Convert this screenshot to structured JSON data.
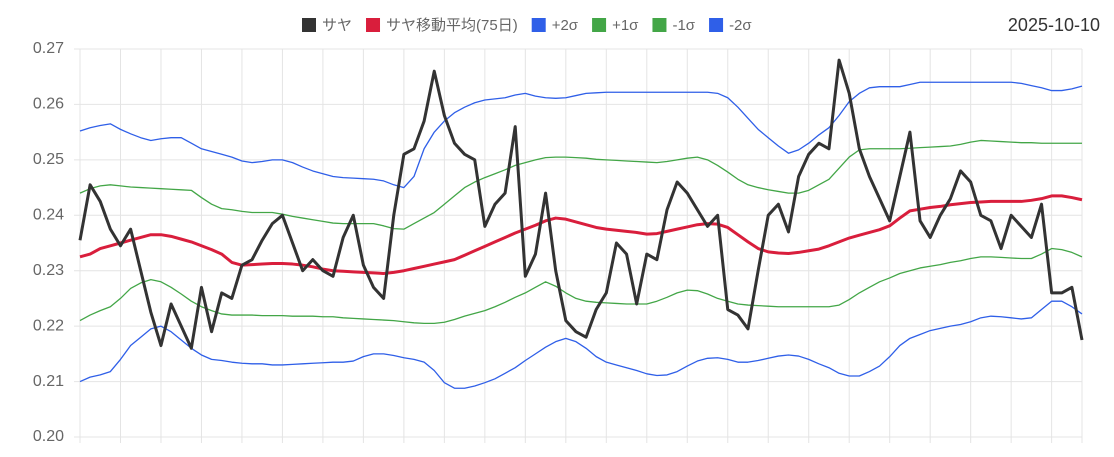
{
  "chart_data": {
    "type": "line",
    "date": "2025-10-10",
    "ylim": [
      0.2,
      0.27
    ],
    "yticks": [
      {
        "value": 0.2,
        "label": "0.20"
      },
      {
        "value": 0.21,
        "label": "0.21"
      },
      {
        "value": 0.22,
        "label": "0.22"
      },
      {
        "value": 0.23,
        "label": "0.23"
      },
      {
        "value": 0.24,
        "label": "0.24"
      },
      {
        "value": 0.25,
        "label": "0.25"
      },
      {
        "value": 0.26,
        "label": "0.26"
      },
      {
        "value": 0.27,
        "label": "0.27"
      }
    ],
    "grid": true,
    "series": [
      {
        "name": "サヤ",
        "color": "#333333",
        "values": [
          0.2355,
          0.2455,
          0.2425,
          0.2375,
          0.2345,
          0.2375,
          0.23,
          0.2225,
          0.2165,
          0.224,
          0.22,
          0.216,
          0.227,
          0.219,
          0.226,
          0.225,
          0.231,
          0.232,
          0.2355,
          0.2385,
          0.24,
          0.235,
          0.23,
          0.232,
          0.23,
          0.229,
          0.236,
          0.24,
          0.231,
          0.227,
          0.225,
          0.24,
          0.251,
          0.252,
          0.257,
          0.266,
          0.258,
          0.253,
          0.251,
          0.25,
          0.238,
          0.242,
          0.244,
          0.256,
          0.229,
          0.233,
          0.244,
          0.23,
          0.221,
          0.219,
          0.218,
          0.223,
          0.226,
          0.235,
          0.233,
          0.224,
          0.233,
          0.232,
          0.241,
          0.246,
          0.244,
          0.241,
          0.238,
          0.24,
          0.223,
          0.222,
          0.2195,
          0.23,
          0.24,
          0.242,
          0.237,
          0.247,
          0.251,
          0.253,
          0.252,
          0.268,
          0.262,
          0.252,
          0.247,
          0.243,
          0.239,
          0.247,
          0.255,
          0.239,
          0.236,
          0.24,
          0.243,
          0.248,
          0.246,
          0.24,
          0.239,
          0.234,
          0.24,
          0.238,
          0.236,
          0.242,
          0.226,
          0.226,
          0.227,
          0.2175
        ]
      },
      {
        "name": "サヤ移動平均(75日)",
        "color": "#d91e3c",
        "values": [
          0.2325,
          0.233,
          0.234,
          0.2345,
          0.235,
          0.2355,
          0.236,
          0.2365,
          0.2365,
          0.2362,
          0.2357,
          0.2352,
          0.2345,
          0.2338,
          0.233,
          0.2315,
          0.231,
          0.2311,
          0.2312,
          0.2313,
          0.2313,
          0.2312,
          0.231,
          0.2307,
          0.2303,
          0.23,
          0.2299,
          0.2298,
          0.2297,
          0.2296,
          0.2295,
          0.2297,
          0.23,
          0.2304,
          0.2308,
          0.2312,
          0.2316,
          0.232,
          0.2328,
          0.2336,
          0.2344,
          0.2352,
          0.236,
          0.2368,
          0.2375,
          0.2382,
          0.239,
          0.2395,
          0.2393,
          0.2388,
          0.2383,
          0.2378,
          0.2375,
          0.2373,
          0.2371,
          0.2369,
          0.2366,
          0.2367,
          0.2371,
          0.2375,
          0.2379,
          0.2383,
          0.2385,
          0.2384,
          0.2378,
          0.2365,
          0.2352,
          0.234,
          0.2334,
          0.2332,
          0.2331,
          0.2333,
          0.2336,
          0.2339,
          0.2345,
          0.2352,
          0.2359,
          0.2364,
          0.2369,
          0.2374,
          0.2381,
          0.2395,
          0.2408,
          0.2411,
          0.2414,
          0.2416,
          0.2419,
          0.2421,
          0.2423,
          0.2424,
          0.2425,
          0.2425,
          0.2425,
          0.2425,
          0.2427,
          0.243,
          0.2435,
          0.2435,
          0.2432,
          0.2428
        ]
      },
      {
        "name": "+2σ",
        "color": "#2f5fe8",
        "values": [
          0.2552,
          0.2558,
          0.2562,
          0.2565,
          0.2555,
          0.2547,
          0.254,
          0.2535,
          0.2538,
          0.254,
          0.254,
          0.253,
          0.252,
          0.2515,
          0.251,
          0.2505,
          0.2498,
          0.2495,
          0.2497,
          0.25,
          0.25,
          0.2495,
          0.2487,
          0.248,
          0.2475,
          0.247,
          0.2468,
          0.2467,
          0.2466,
          0.2465,
          0.2462,
          0.2455,
          0.245,
          0.247,
          0.252,
          0.255,
          0.257,
          0.2585,
          0.2595,
          0.2603,
          0.2608,
          0.261,
          0.2612,
          0.2617,
          0.262,
          0.2615,
          0.2612,
          0.2611,
          0.2612,
          0.2616,
          0.262,
          0.2621,
          0.2622,
          0.2622,
          0.2622,
          0.2622,
          0.2622,
          0.2622,
          0.2622,
          0.2622,
          0.2622,
          0.2622,
          0.2622,
          0.262,
          0.2612,
          0.2595,
          0.2575,
          0.2555,
          0.254,
          0.2525,
          0.2512,
          0.2518,
          0.253,
          0.2545,
          0.2558,
          0.258,
          0.2605,
          0.262,
          0.263,
          0.2632,
          0.2632,
          0.2632,
          0.2636,
          0.264,
          0.264,
          0.264,
          0.264,
          0.264,
          0.264,
          0.264,
          0.264,
          0.264,
          0.264,
          0.2638,
          0.2634,
          0.263,
          0.2625,
          0.2625,
          0.2628,
          0.2633
        ]
      },
      {
        "name": "+1σ",
        "color": "#43a647",
        "values": [
          0.244,
          0.2448,
          0.2453,
          0.2455,
          0.2453,
          0.2451,
          0.245,
          0.2449,
          0.2448,
          0.2447,
          0.2446,
          0.2445,
          0.2432,
          0.242,
          0.2412,
          0.241,
          0.2407,
          0.2405,
          0.2405,
          0.2405,
          0.2402,
          0.2398,
          0.2395,
          0.2392,
          0.2389,
          0.2386,
          0.2385,
          0.2385,
          0.2385,
          0.2385,
          0.2381,
          0.2376,
          0.2375,
          0.2385,
          0.2395,
          0.2405,
          0.242,
          0.2435,
          0.245,
          0.246,
          0.2468,
          0.2475,
          0.2482,
          0.249,
          0.2495,
          0.25,
          0.2504,
          0.2505,
          0.2505,
          0.2504,
          0.2503,
          0.2501,
          0.25,
          0.2499,
          0.2498,
          0.2497,
          0.2496,
          0.2495,
          0.2497,
          0.25,
          0.2503,
          0.2505,
          0.25,
          0.249,
          0.2478,
          0.2465,
          0.2455,
          0.245,
          0.2446,
          0.2443,
          0.244,
          0.244,
          0.2445,
          0.2455,
          0.2465,
          0.2485,
          0.2505,
          0.2518,
          0.252,
          0.252,
          0.252,
          0.252,
          0.2521,
          0.2522,
          0.2523,
          0.2524,
          0.2525,
          0.2528,
          0.2532,
          0.2535,
          0.2534,
          0.2533,
          0.2532,
          0.2531,
          0.2531,
          0.253,
          0.253,
          0.253,
          0.253,
          0.253
        ]
      },
      {
        "name": "-1σ",
        "color": "#43a647",
        "values": [
          0.221,
          0.222,
          0.2228,
          0.2235,
          0.225,
          0.2268,
          0.2278,
          0.2284,
          0.228,
          0.227,
          0.2258,
          0.2245,
          0.2235,
          0.2228,
          0.2222,
          0.222,
          0.222,
          0.222,
          0.2219,
          0.2219,
          0.2219,
          0.2218,
          0.2218,
          0.2218,
          0.2217,
          0.2217,
          0.2215,
          0.2214,
          0.2213,
          0.2212,
          0.2211,
          0.221,
          0.2208,
          0.2206,
          0.2205,
          0.2205,
          0.2207,
          0.2212,
          0.2218,
          0.2223,
          0.2228,
          0.2235,
          0.2243,
          0.2252,
          0.226,
          0.227,
          0.228,
          0.2272,
          0.226,
          0.225,
          0.2245,
          0.2243,
          0.2242,
          0.2241,
          0.224,
          0.224,
          0.224,
          0.2245,
          0.2252,
          0.226,
          0.2265,
          0.2264,
          0.2258,
          0.225,
          0.2245,
          0.224,
          0.2238,
          0.2237,
          0.2236,
          0.2235,
          0.2235,
          0.2235,
          0.2235,
          0.2235,
          0.2235,
          0.2238,
          0.2248,
          0.226,
          0.227,
          0.228,
          0.2287,
          0.2295,
          0.23,
          0.2305,
          0.2308,
          0.2311,
          0.2315,
          0.2318,
          0.2322,
          0.2325,
          0.2325,
          0.2324,
          0.2323,
          0.2322,
          0.2322,
          0.233,
          0.234,
          0.2338,
          0.2333,
          0.2325
        ]
      },
      {
        "name": "-2σ",
        "color": "#2f5fe8",
        "values": [
          0.21,
          0.2108,
          0.2112,
          0.2118,
          0.214,
          0.2165,
          0.218,
          0.2195,
          0.22,
          0.219,
          0.2175,
          0.216,
          0.2148,
          0.214,
          0.2138,
          0.2135,
          0.2133,
          0.2132,
          0.2132,
          0.213,
          0.213,
          0.2131,
          0.2132,
          0.2133,
          0.2134,
          0.2135,
          0.2135,
          0.2137,
          0.2145,
          0.215,
          0.215,
          0.2147,
          0.2143,
          0.214,
          0.2135,
          0.212,
          0.2098,
          0.2088,
          0.2088,
          0.2092,
          0.2098,
          0.2105,
          0.2115,
          0.2125,
          0.2138,
          0.215,
          0.2162,
          0.2172,
          0.2178,
          0.2172,
          0.216,
          0.2145,
          0.2135,
          0.213,
          0.2125,
          0.212,
          0.2114,
          0.2111,
          0.2112,
          0.2118,
          0.2128,
          0.2137,
          0.2142,
          0.2143,
          0.214,
          0.2135,
          0.2135,
          0.2138,
          0.2142,
          0.2146,
          0.2148,
          0.2146,
          0.214,
          0.2132,
          0.2125,
          0.2115,
          0.211,
          0.211,
          0.2118,
          0.2128,
          0.2145,
          0.2165,
          0.2178,
          0.2185,
          0.2192,
          0.2196,
          0.22,
          0.2203,
          0.2208,
          0.2215,
          0.2218,
          0.2217,
          0.2215,
          0.2213,
          0.2215,
          0.223,
          0.2245,
          0.2245,
          0.2235,
          0.2222
        ]
      }
    ]
  }
}
